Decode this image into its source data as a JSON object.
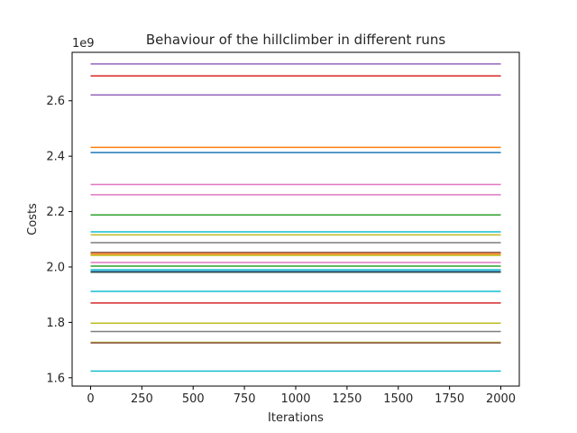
{
  "chart_data": {
    "type": "line",
    "title": "Behaviour of the hillclimber in different runs",
    "xlabel": "Iterations",
    "ylabel": "Costs",
    "y_offset_label": "1e9",
    "xlim": [
      -90,
      2090
    ],
    "ylim": [
      1.57,
      2.775
    ],
    "x_ticks": [
      0,
      250,
      500,
      750,
      1000,
      1250,
      1500,
      1750,
      2000
    ],
    "x_tick_labels": [
      "0",
      "250",
      "500",
      "750",
      "1000",
      "1250",
      "1500",
      "1750",
      "2000"
    ],
    "y_ticks": [
      1.6,
      1.8,
      2.0,
      2.2,
      2.4,
      2.6
    ],
    "y_tick_labels": [
      "1.6",
      "1.8",
      "2.0",
      "2.2",
      "2.4",
      "2.6"
    ],
    "grid": false,
    "x_range": [
      0,
      2000
    ],
    "series": [
      {
        "values": [
          2.733,
          2.733
        ],
        "color": "#9467bd"
      },
      {
        "values": [
          2.69,
          2.69
        ],
        "color": "#d62728"
      },
      {
        "values": [
          2.621,
          2.621
        ],
        "color": "#9467bd"
      },
      {
        "values": [
          2.432,
          2.432
        ],
        "color": "#ff7f0e"
      },
      {
        "values": [
          2.413,
          2.413
        ],
        "color": "#1f77b4"
      },
      {
        "values": [
          2.298,
          2.298
        ],
        "color": "#e377c2"
      },
      {
        "values": [
          2.261,
          2.261
        ],
        "color": "#e377c2"
      },
      {
        "values": [
          2.188,
          2.188
        ],
        "color": "#2ca02c"
      },
      {
        "values": [
          2.127,
          2.127
        ],
        "color": "#17becf"
      },
      {
        "values": [
          2.116,
          2.116
        ],
        "color": "#bcbd22"
      },
      {
        "values": [
          2.088,
          2.088
        ],
        "color": "#7f7f7f"
      },
      {
        "values": [
          2.053,
          2.053
        ],
        "color": "#8c564b"
      },
      {
        "values": [
          2.047,
          2.047
        ],
        "color": "#ff7f0e"
      },
      {
        "values": [
          2.042,
          2.042
        ],
        "color": "#bcbd22"
      },
      {
        "values": [
          2.016,
          2.016
        ],
        "color": "#e377c2"
      },
      {
        "values": [
          2.003,
          2.003
        ],
        "color": "#2ca02c"
      },
      {
        "values": [
          1.99,
          1.99
        ],
        "color": "#17becf"
      },
      {
        "values": [
          1.984,
          1.984
        ],
        "color": "#1f77b4"
      },
      {
        "values": [
          1.981,
          1.981
        ],
        "color": "#2f4f4f"
      },
      {
        "values": [
          1.912,
          1.912
        ],
        "color": "#17becf"
      },
      {
        "values": [
          1.87,
          1.87
        ],
        "color": "#d62728"
      },
      {
        "values": [
          1.797,
          1.797
        ],
        "color": "#bcbd22"
      },
      {
        "values": [
          1.767,
          1.767
        ],
        "color": "#7f7f7f"
      },
      {
        "values": [
          1.728,
          1.728
        ],
        "color": "#bcbd22"
      },
      {
        "values": [
          1.726,
          1.726
        ],
        "color": "#8c564b"
      },
      {
        "values": [
          1.624,
          1.624
        ],
        "color": "#17becf"
      }
    ]
  }
}
